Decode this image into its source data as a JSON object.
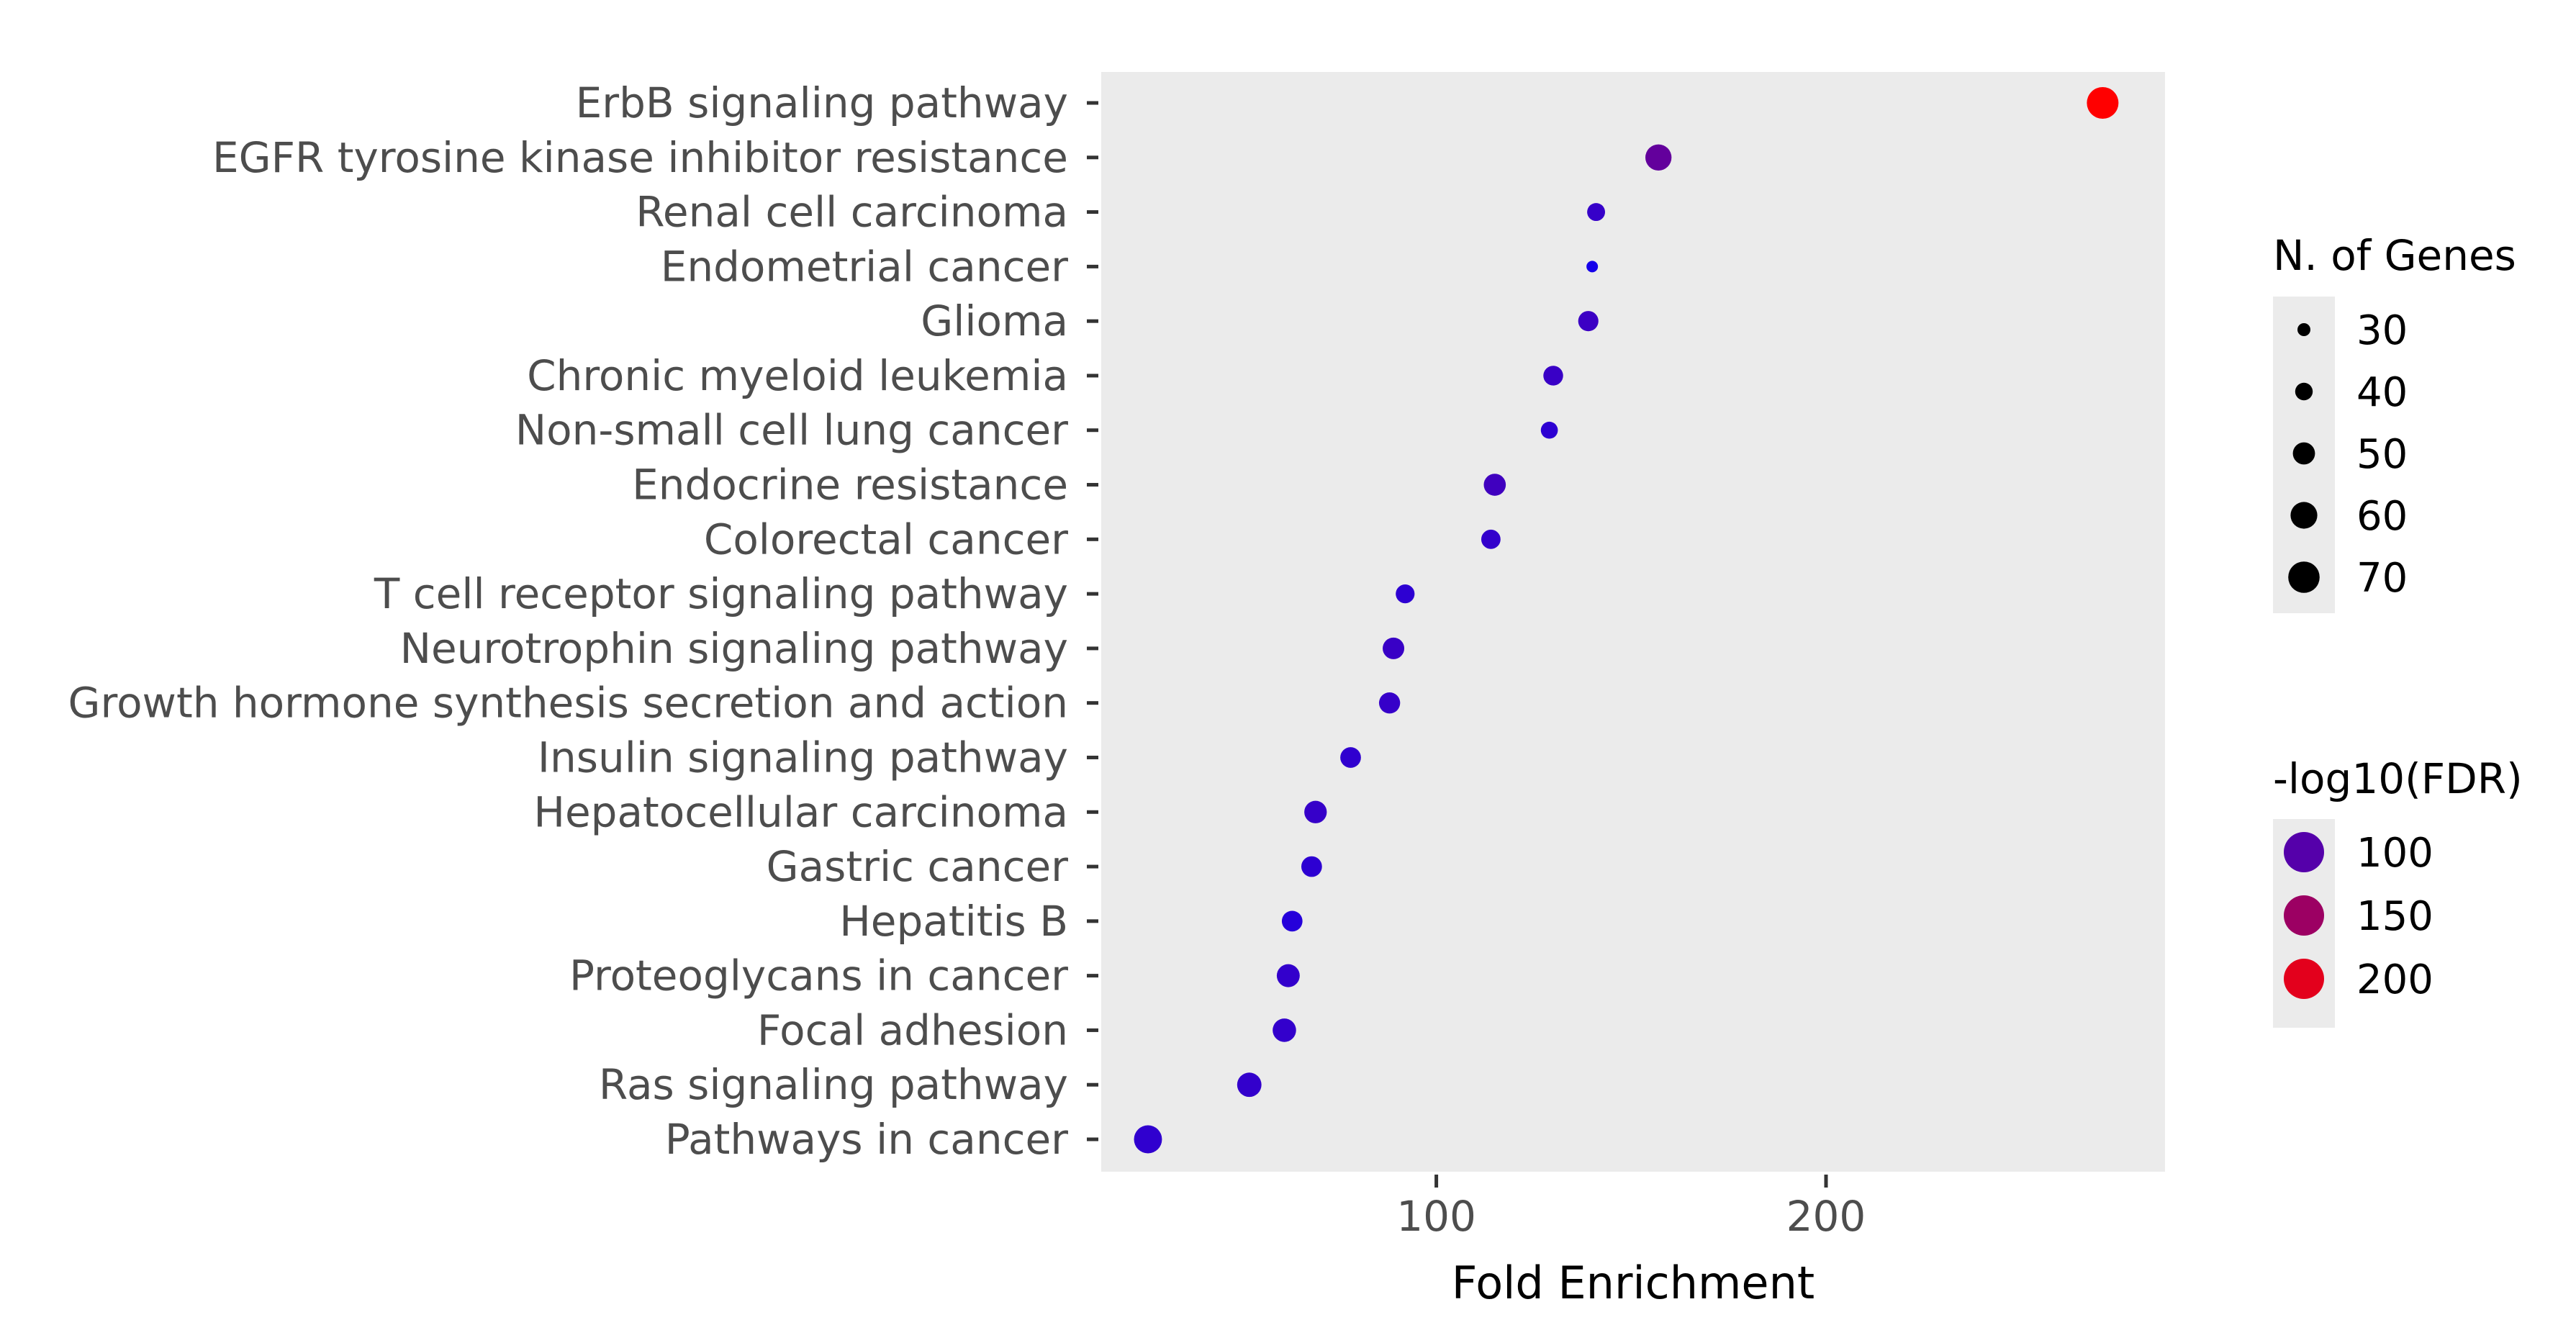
{
  "chart_data": {
    "type": "scatter",
    "xlabel": "Fold Enrichment",
    "ylabel": "",
    "x_ticks": [
      100,
      200
    ],
    "xlim": [
      14,
      287
    ],
    "grid": false,
    "panel_background": "#ebebeb",
    "categories": [
      "ErbB signaling pathway",
      "EGFR tyrosine kinase inhibitor resistance",
      "Renal cell carcinoma",
      "Endometrial cancer",
      "Glioma",
      "Chronic myeloid leukemia",
      "Non-small cell lung cancer",
      "Endocrine resistance",
      "Colorectal cancer",
      "T cell receptor signaling pathway",
      "Neurotrophin signaling pathway",
      "Growth hormone synthesis secretion and action",
      "Insulin signaling pathway",
      "Hepatocellular carcinoma",
      "Gastric cancer",
      "Hepatitis B",
      "Proteoglycans in cancer",
      "Focal adhesion",
      "Ras signaling pathway",
      "Pathways in cancer"
    ],
    "points": [
      {
        "category": "ErbB signaling pathway",
        "fold_enrichment": 271,
        "n_genes": 70,
        "neg_log10_fdr": 220
      },
      {
        "category": "EGFR tyrosine kinase inhibitor resistance",
        "fold_enrichment": 157,
        "n_genes": 58,
        "neg_log10_fdr": 110
      },
      {
        "category": "Renal cell carcinoma",
        "fold_enrichment": 141,
        "n_genes": 40,
        "neg_log10_fdr": 78
      },
      {
        "category": "Endometrial cancer",
        "fold_enrichment": 140,
        "n_genes": 26,
        "neg_log10_fdr": 55
      },
      {
        "category": "Glioma",
        "fold_enrichment": 139,
        "n_genes": 45,
        "neg_log10_fdr": 82
      },
      {
        "category": "Chronic myeloid leukemia",
        "fold_enrichment": 130,
        "n_genes": 44,
        "neg_log10_fdr": 80
      },
      {
        "category": "Non-small cell lung cancer",
        "fold_enrichment": 129,
        "n_genes": 38,
        "neg_log10_fdr": 72
      },
      {
        "category": "Endocrine resistance",
        "fold_enrichment": 115,
        "n_genes": 49,
        "neg_log10_fdr": 85
      },
      {
        "category": "Colorectal cancer",
        "fold_enrichment": 114,
        "n_genes": 43,
        "neg_log10_fdr": 76
      },
      {
        "category": "T cell receptor signaling pathway",
        "fold_enrichment": 92,
        "n_genes": 42,
        "neg_log10_fdr": 72
      },
      {
        "category": "Neurotrophin signaling pathway",
        "fold_enrichment": 89,
        "n_genes": 48,
        "neg_log10_fdr": 80
      },
      {
        "category": "Growth hormone synthesis secretion and action",
        "fold_enrichment": 88,
        "n_genes": 47,
        "neg_log10_fdr": 78
      },
      {
        "category": "Insulin signaling pathway",
        "fold_enrichment": 78,
        "n_genes": 46,
        "neg_log10_fdr": 74
      },
      {
        "category": "Hepatocellular carcinoma",
        "fold_enrichment": 69,
        "n_genes": 50,
        "neg_log10_fdr": 78
      },
      {
        "category": "Gastric cancer",
        "fold_enrichment": 68,
        "n_genes": 46,
        "neg_log10_fdr": 72
      },
      {
        "category": "Hepatitis B",
        "fold_enrichment": 63,
        "n_genes": 46,
        "neg_log10_fdr": 66
      },
      {
        "category": "Proteoglycans in cancer",
        "fold_enrichment": 62,
        "n_genes": 51,
        "neg_log10_fdr": 76
      },
      {
        "category": "Focal adhesion",
        "fold_enrichment": 61,
        "n_genes": 52,
        "neg_log10_fdr": 76
      },
      {
        "category": "Ras signaling pathway",
        "fold_enrichment": 52,
        "n_genes": 54,
        "neg_log10_fdr": 76
      },
      {
        "category": "Pathways in cancer",
        "fold_enrichment": 26,
        "n_genes": 62,
        "neg_log10_fdr": 74
      }
    ],
    "size_legend": {
      "title": "N. of Genes",
      "values": [
        30,
        40,
        50,
        60,
        70
      ],
      "labels": [
        "30",
        "40",
        "50",
        "60",
        "70"
      ]
    },
    "color_legend": {
      "title": "-log10(FDR)",
      "values": [
        100,
        150,
        200
      ],
      "labels": [
        "100",
        "150",
        "200"
      ],
      "low_color": "#0000ff",
      "high_color": "#ff0000"
    },
    "legend_position": "right"
  }
}
